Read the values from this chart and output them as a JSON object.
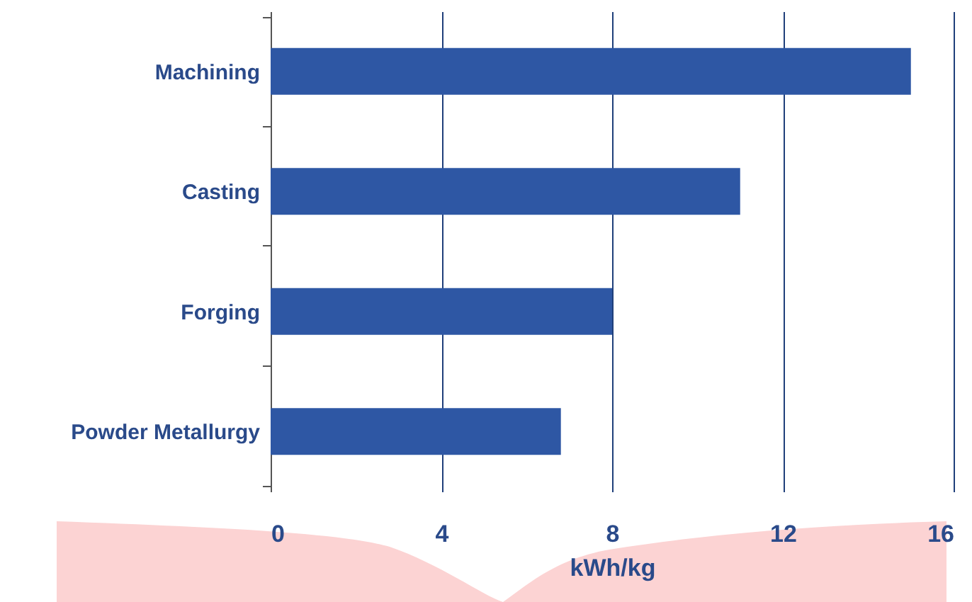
{
  "chart_data": {
    "type": "bar",
    "orientation": "horizontal",
    "categories": [
      "Machining",
      "Casting",
      "Forging",
      "Powder Metallurgy"
    ],
    "values": [
      15,
      11,
      8,
      6.8
    ],
    "color": "#2e57a4",
    "xlabel": "kWh/kg",
    "xlim": [
      0,
      16
    ],
    "xticks": [
      0,
      4,
      8,
      12,
      16
    ],
    "grid": "x"
  }
}
